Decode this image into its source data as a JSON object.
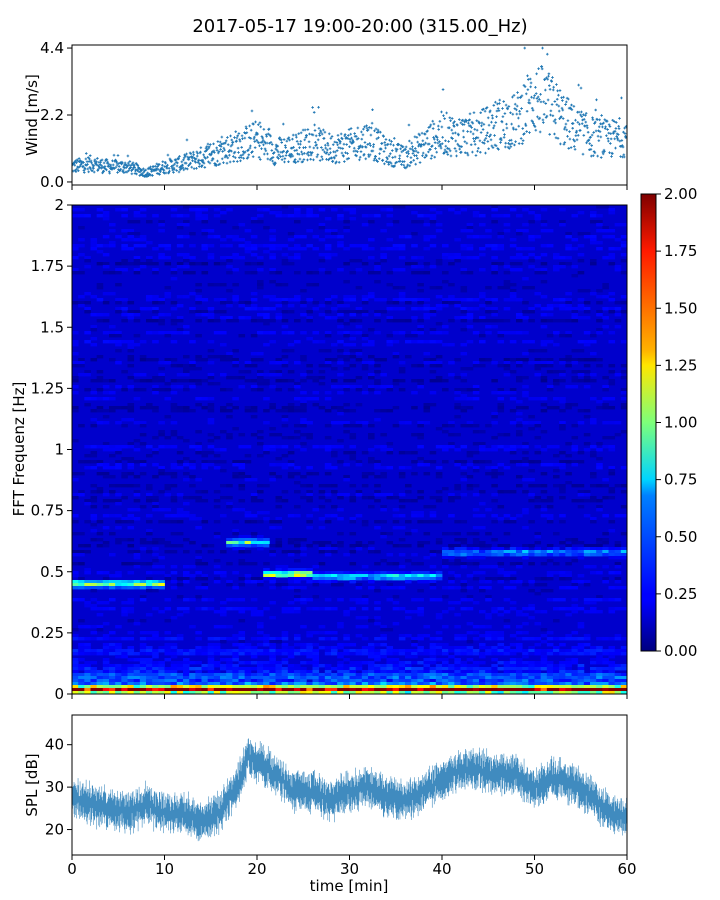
{
  "figure": {
    "title": "2017-05-17 19:00-20:00 (315.00_Hz)"
  },
  "chart_data": [
    {
      "type": "scatter",
      "ylabel": "Wind [m/s]",
      "xlim": [
        0,
        60
      ],
      "ylim": [
        -0.1,
        4.5
      ],
      "yticks": [
        "0.0",
        "2.2",
        "4.4"
      ],
      "ytick_values": [
        0.0,
        2.2,
        4.4
      ],
      "point_color": "#1f77b4",
      "marker": "plus",
      "series": [
        {
          "x": [
            0,
            2,
            4,
            6,
            8,
            10,
            12,
            14,
            16,
            18,
            20,
            22,
            24,
            26,
            28,
            30,
            32,
            34,
            36,
            38,
            40,
            42,
            44,
            46,
            48,
            50,
            52,
            54,
            56,
            58,
            60
          ],
          "y": [
            0.5,
            0.6,
            0.5,
            0.5,
            0.3,
            0.5,
            0.6,
            0.8,
            1.0,
            1.2,
            1.4,
            1.0,
            1.1,
            1.3,
            1.1,
            1.2,
            1.4,
            1.0,
            0.8,
            1.2,
            1.6,
            1.5,
            1.6,
            1.9,
            2.0,
            2.8,
            2.4,
            1.8,
            1.5,
            1.4,
            1.5
          ],
          "max": 4.4
        }
      ]
    },
    {
      "type": "heatmap",
      "ylabel": "FFT Frequenz [Hz]",
      "xlim": [
        0,
        60
      ],
      "ylim": [
        0,
        2
      ],
      "yticks": [
        "0",
        "0.25",
        "0.5",
        "0.75",
        "1",
        "1.25",
        "1.5",
        "1.75",
        "2"
      ],
      "ytick_values": [
        0,
        0.25,
        0.5,
        0.75,
        1,
        1.25,
        1.5,
        1.75,
        2
      ],
      "colormap": "jet",
      "colorbar": {
        "range": [
          0,
          2
        ],
        "ticks": [
          "0.00",
          "0.25",
          "0.50",
          "0.75",
          "1.00",
          "1.25",
          "1.50",
          "1.75",
          "2.00"
        ],
        "tick_values": [
          0,
          0.25,
          0.5,
          0.75,
          1.0,
          1.25,
          1.5,
          1.75,
          2.0
        ]
      },
      "background_level": 0.15,
      "features": [
        {
          "x_range": [
            0,
            60
          ],
          "freq": 0.02,
          "level": 1.6
        },
        {
          "x_range": [
            0,
            10
          ],
          "freq": 0.45,
          "level": 0.95
        },
        {
          "x_range": [
            17,
            21
          ],
          "freq": 0.62,
          "level": 0.9
        },
        {
          "x_range": [
            21,
            26
          ],
          "freq": 0.49,
          "level": 1.1
        },
        {
          "x_range": [
            26,
            40
          ],
          "freq": 0.48,
          "level": 0.6
        },
        {
          "x_range": [
            40,
            60
          ],
          "freq": 0.58,
          "level": 0.45
        }
      ]
    },
    {
      "type": "area",
      "ylabel": "SPL [dB]",
      "xlabel": "time [min]",
      "xlim": [
        0,
        60
      ],
      "ylim": [
        14,
        47
      ],
      "xticks": [
        "0",
        "10",
        "20",
        "30",
        "40",
        "50",
        "60"
      ],
      "xtick_values": [
        0,
        10,
        20,
        30,
        40,
        50,
        60
      ],
      "yticks": [
        "20",
        "30",
        "40"
      ],
      "ytick_values": [
        20,
        30,
        40
      ],
      "color": "#1f77b4",
      "series": [
        {
          "x": [
            0,
            2,
            4,
            6,
            8,
            10,
            12,
            14,
            16,
            18,
            19,
            20,
            22,
            24,
            26,
            28,
            30,
            32,
            34,
            36,
            38,
            40,
            42,
            44,
            46,
            48,
            50,
            52,
            54,
            56,
            58,
            60
          ],
          "y": [
            27,
            26,
            25,
            24,
            26,
            24,
            24,
            22,
            24,
            31,
            37,
            36,
            33,
            29,
            29,
            27,
            29,
            30,
            28,
            27,
            29,
            32,
            34,
            34,
            33,
            33,
            30,
            32,
            31,
            28,
            24,
            23
          ],
          "spread": 3
        }
      ]
    }
  ]
}
